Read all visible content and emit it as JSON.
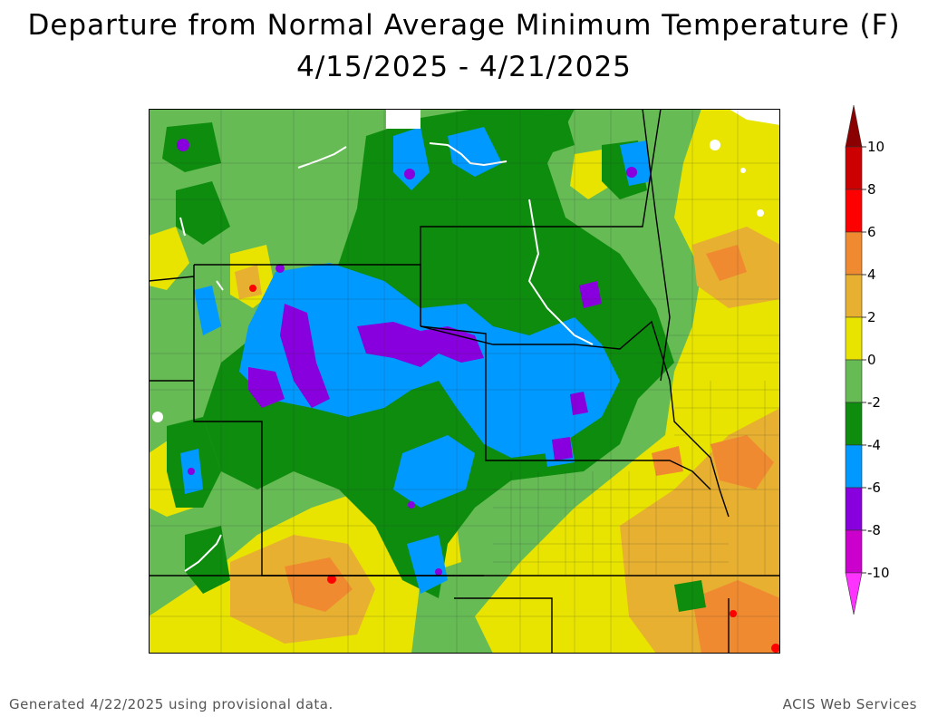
{
  "title": {
    "line1": "Departure from Normal Average Minimum Temperature (F)",
    "line2": "4/15/2025 - 4/21/2025"
  },
  "legend": {
    "ticks": [
      "10",
      "8",
      "6",
      "4",
      "2",
      "0",
      "-2",
      "-4",
      "-6",
      "-8",
      "-10"
    ],
    "bins": [
      {
        "color": "#8b0000",
        "range": "above 10"
      },
      {
        "color": "#cc0000",
        "range": "8 to 10"
      },
      {
        "color": "#ff0000",
        "range": "6 to 8"
      },
      {
        "color": "#f08a30",
        "range": "4 to 6"
      },
      {
        "color": "#e8b030",
        "range": "2 to 4"
      },
      {
        "color": "#e8e400",
        "range": "0 to 2"
      },
      {
        "color": "#66bb55",
        "range": "-2 to 0"
      },
      {
        "color": "#0d8c0d",
        "range": "-4 to -2"
      },
      {
        "color": "#0099ff",
        "range": "-6 to -4"
      },
      {
        "color": "#8800dd",
        "range": "-8 to -6"
      },
      {
        "color": "#cc00cc",
        "range": "-10 to -8"
      },
      {
        "color": "#ff33ff",
        "range": "below -10"
      }
    ]
  },
  "footer": {
    "left": "Generated 4/22/2025 using provisional data.",
    "right": "ACIS Web Services"
  }
}
